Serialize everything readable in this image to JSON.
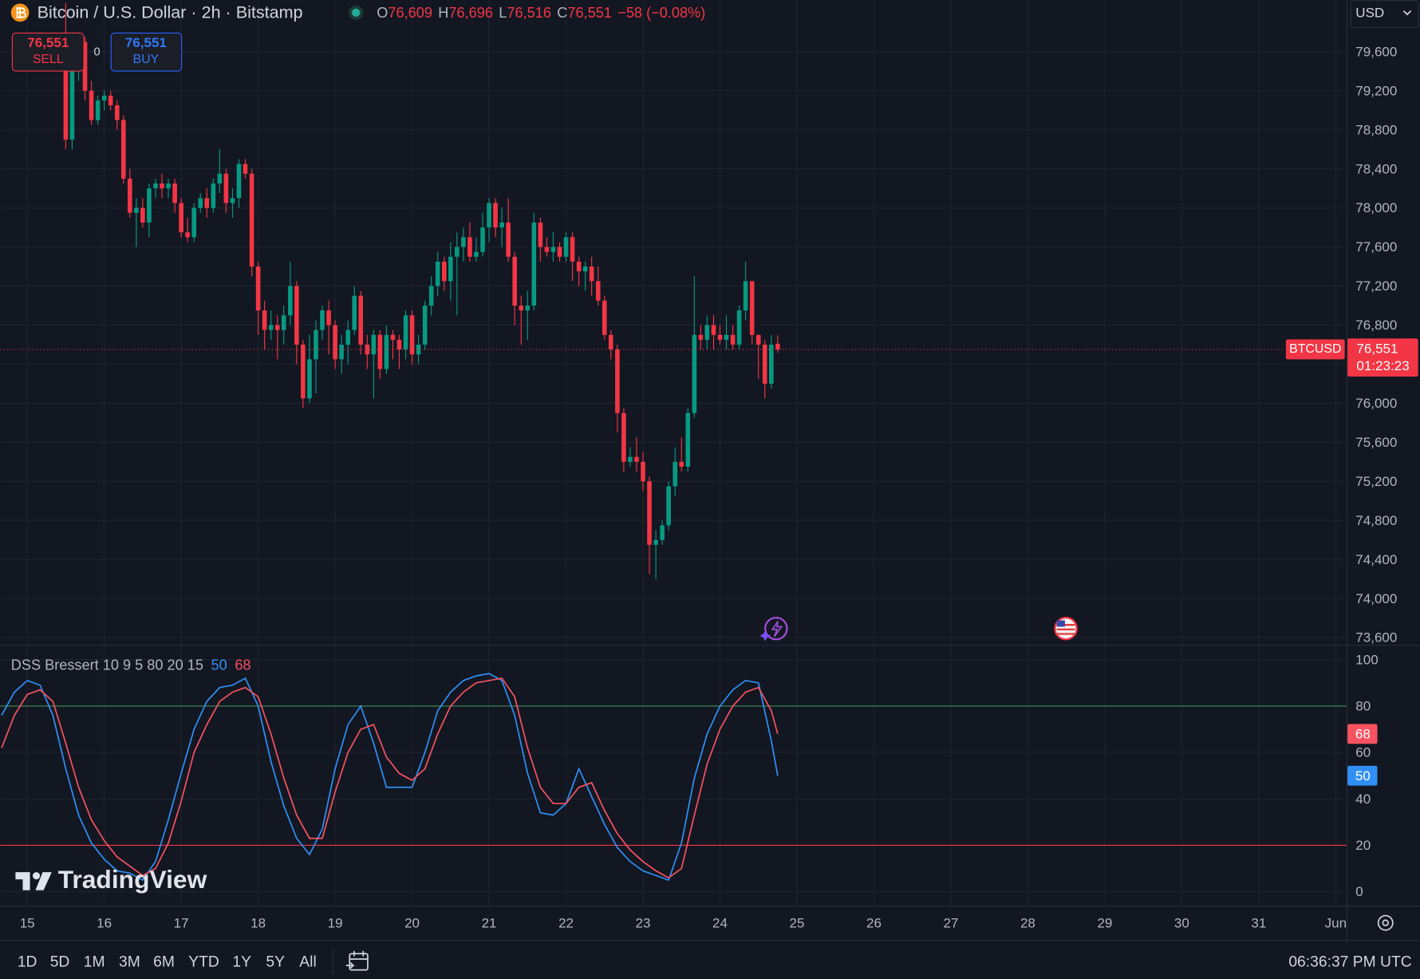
{
  "header": {
    "title": "Bitcoin / U.S. Dollar · 2h · Bitstamp",
    "ohlc": [
      {
        "key": "O",
        "value": "76,609"
      },
      {
        "key": "H",
        "value": "76,696"
      },
      {
        "key": "L",
        "value": "76,516"
      },
      {
        "key": "C",
        "value": "76,551"
      }
    ],
    "change": "−58 (−0.08%)",
    "currency": "USD"
  },
  "trade": {
    "sell": {
      "price": "76,551",
      "label": "SELL"
    },
    "spread": "0",
    "buy": {
      "price": "76,551",
      "label": "BUY"
    }
  },
  "watermark": "TradingView",
  "toolbar": {
    "ranges": [
      "1D",
      "5D",
      "1M",
      "3M",
      "6M",
      "YTD",
      "1Y",
      "5Y",
      "All"
    ],
    "clock": "06:36:37 PM UTC"
  },
  "chart_data": [
    {
      "type": "candlestick",
      "up_color": "#089981",
      "down_color": "#f23645",
      "grid": true,
      "xlim": [
        14.647,
        32.141
      ],
      "xticks": [
        15,
        16,
        17,
        18,
        19,
        20,
        21,
        22,
        23,
        24,
        25,
        26,
        27,
        28,
        29,
        30,
        31,
        {
          "value": 32,
          "label": "Jun"
        }
      ],
      "ylim": [
        73526,
        80129
      ],
      "yticks": [
        {
          "value": 73600,
          "label": "73,600"
        },
        {
          "value": 74000,
          "label": "74,000"
        },
        {
          "value": 74400,
          "label": "74,400"
        },
        {
          "value": 74800,
          "label": "74,800"
        },
        {
          "value": 75200,
          "label": "75,200"
        },
        {
          "value": 75600,
          "label": "75,600"
        },
        {
          "value": 76000,
          "label": "76,000"
        },
        {
          "value": 76400,
          "label": "76,400"
        },
        {
          "value": 76800,
          "label": "76,800"
        },
        {
          "value": 77200,
          "label": "77,200"
        },
        {
          "value": 77600,
          "label": "77,600"
        },
        {
          "value": 78000,
          "label": "78,000"
        },
        {
          "value": 78400,
          "label": "78,400"
        },
        {
          "value": 78800,
          "label": "78,800"
        },
        {
          "value": 79200,
          "label": "79,200"
        },
        {
          "value": 79600,
          "label": "79,600"
        }
      ],
      "last_price": {
        "symbol": "BTCUSD",
        "value": 76551,
        "label": "76,551",
        "countdown": "01:23:23",
        "color": "#f23645"
      },
      "x": [
        15.5,
        15.583,
        15.667,
        15.75,
        15.833,
        15.917,
        16,
        16.083,
        16.167,
        16.25,
        16.333,
        16.417,
        16.5,
        16.583,
        16.667,
        16.75,
        16.833,
        16.917,
        17,
        17.083,
        17.167,
        17.25,
        17.333,
        17.417,
        17.5,
        17.583,
        17.667,
        17.75,
        17.833,
        17.917,
        18,
        18.083,
        18.167,
        18.25,
        18.333,
        18.417,
        18.5,
        18.583,
        18.667,
        18.75,
        18.833,
        18.917,
        19,
        19.083,
        19.167,
        19.25,
        19.333,
        19.417,
        19.5,
        19.583,
        19.667,
        19.75,
        19.833,
        19.917,
        20,
        20.083,
        20.167,
        20.25,
        20.333,
        20.417,
        20.5,
        20.583,
        20.667,
        20.75,
        20.833,
        20.917,
        21,
        21.083,
        21.167,
        21.25,
        21.333,
        21.417,
        21.5,
        21.583,
        21.667,
        21.75,
        21.833,
        21.917,
        22,
        22.083,
        22.167,
        22.25,
        22.333,
        22.417,
        22.5,
        22.583,
        22.667,
        22.75,
        22.833,
        22.917,
        23,
        23.083,
        23.167,
        23.25,
        23.333,
        23.417,
        23.5,
        23.583,
        23.667,
        23.75,
        23.833,
        23.917,
        24,
        24.083,
        24.167,
        24.25,
        24.333,
        24.417,
        24.5,
        24.583,
        24.667,
        24.75
      ],
      "open": [
        79700,
        78700,
        79400,
        79700,
        79200,
        78900,
        79100,
        79150,
        79050,
        78900,
        78300,
        77950,
        78000,
        77850,
        78200,
        78250,
        78200,
        78250,
        78050,
        77750,
        77700,
        78000,
        78100,
        78000,
        78250,
        78350,
        78050,
        78100,
        78450,
        78350,
        77400,
        76950,
        76750,
        76800,
        76750,
        76900,
        77200,
        76600,
        76050,
        76450,
        76750,
        76950,
        76800,
        76450,
        76600,
        76750,
        77100,
        76600,
        76500,
        76700,
        76350,
        76700,
        76650,
        76550,
        76900,
        76500,
        76600,
        77000,
        77200,
        77450,
        77250,
        77500,
        77600,
        77700,
        77500,
        77550,
        77800,
        78050,
        77800,
        77850,
        77500,
        77000,
        76950,
        77000,
        77850,
        77600,
        77550,
        77600,
        77500,
        77700,
        77450,
        77350,
        77400,
        77250,
        77050,
        76700,
        76550,
        75900,
        75400,
        75450,
        75400,
        75200,
        74550,
        74600,
        74750,
        75150,
        75400,
        75350,
        75900,
        76700,
        76650,
        76800,
        76700,
        76650,
        76700,
        76600,
        76950,
        77250,
        76700,
        76600,
        76200,
        76609
      ],
      "high": [
        80100,
        79500,
        79800,
        79750,
        79300,
        79150,
        79200,
        79200,
        79100,
        78950,
        78400,
        78100,
        78100,
        78250,
        78300,
        78350,
        78300,
        78300,
        78100,
        77900,
        78050,
        78150,
        78200,
        78300,
        78600,
        78400,
        78200,
        78500,
        78500,
        78400,
        77450,
        77050,
        76950,
        76900,
        77000,
        77450,
        77250,
        76650,
        76700,
        76850,
        77000,
        77050,
        76850,
        76700,
        76850,
        77200,
        77150,
        76700,
        76750,
        76750,
        76800,
        76750,
        76700,
        76950,
        76950,
        76700,
        77050,
        77300,
        77550,
        77500,
        77650,
        77750,
        77800,
        77850,
        77700,
        77950,
        78100,
        78100,
        78000,
        78100,
        77550,
        77100,
        77150,
        77950,
        77900,
        77700,
        77750,
        77650,
        77750,
        77750,
        77500,
        77450,
        77500,
        77400,
        77100,
        76750,
        76600,
        75950,
        75550,
        75650,
        75500,
        75250,
        74700,
        74800,
        75200,
        75550,
        75650,
        75950,
        77300,
        76800,
        76900,
        76900,
        76800,
        76900,
        76800,
        77000,
        77450,
        77250,
        76700,
        76650,
        76700,
        76696
      ],
      "low": [
        78600,
        78600,
        79300,
        79100,
        78850,
        78850,
        79000,
        79000,
        78800,
        78250,
        77900,
        77600,
        77800,
        77700,
        78100,
        78100,
        78100,
        77950,
        77700,
        77650,
        77650,
        77950,
        77900,
        77950,
        78150,
        77950,
        77900,
        78000,
        78300,
        77300,
        76700,
        76550,
        76650,
        76450,
        76600,
        76800,
        76400,
        75950,
        76000,
        76100,
        76650,
        76500,
        76350,
        76300,
        76400,
        76700,
        76500,
        76350,
        76050,
        76250,
        76300,
        76450,
        76350,
        76450,
        76400,
        76400,
        76550,
        76900,
        77100,
        77150,
        77050,
        76900,
        77450,
        77450,
        77450,
        77500,
        77650,
        77700,
        77600,
        77450,
        76800,
        76600,
        76650,
        76950,
        77450,
        77500,
        77450,
        77450,
        77450,
        77250,
        77200,
        77150,
        77100,
        77000,
        76650,
        76450,
        75700,
        75300,
        75350,
        75300,
        75100,
        74250,
        74200,
        74550,
        74700,
        75050,
        75300,
        75300,
        75850,
        76550,
        76550,
        76550,
        76600,
        76550,
        76550,
        76550,
        76850,
        76600,
        76250,
        76050,
        76150,
        76516
      ],
      "close": [
        78700,
        79400,
        79700,
        79200,
        78900,
        79100,
        79150,
        79050,
        78900,
        78300,
        77950,
        78000,
        77850,
        78200,
        78250,
        78200,
        78250,
        78050,
        77750,
        77700,
        78000,
        78100,
        78000,
        78250,
        78350,
        78050,
        78100,
        78450,
        78350,
        77400,
        76950,
        76750,
        76800,
        76750,
        76900,
        77200,
        76600,
        76050,
        76450,
        76750,
        76950,
        76800,
        76450,
        76600,
        76750,
        77100,
        76600,
        76500,
        76700,
        76350,
        76700,
        76650,
        76550,
        76900,
        76500,
        76600,
        77000,
        77200,
        77450,
        77250,
        77500,
        77600,
        77700,
        77500,
        77550,
        77800,
        78050,
        77800,
        77850,
        77500,
        77000,
        76950,
        77000,
        77850,
        77600,
        77550,
        77600,
        77500,
        77700,
        77450,
        77350,
        77400,
        77250,
        77050,
        76700,
        76550,
        75900,
        75400,
        75450,
        75400,
        75200,
        74550,
        74600,
        74750,
        75150,
        75400,
        75350,
        75900,
        76700,
        76650,
        76800,
        76700,
        76650,
        76700,
        76600,
        76950,
        77250,
        76700,
        76600,
        76200,
        76600,
        76551
      ]
    },
    {
      "type": "line",
      "title": "DSS Bressert 10 9 5 80 20 15",
      "grid": true,
      "xlim": [
        14.647,
        32.141
      ],
      "ylim": [
        -6,
        106
      ],
      "yticks": [
        0,
        20,
        40,
        60,
        80,
        100
      ],
      "levels": [
        {
          "value": 80,
          "color": "#3d8f55"
        },
        {
          "value": 20,
          "color": "#f23645"
        }
      ],
      "x": [
        14.667,
        14.833,
        15,
        15.167,
        15.333,
        15.5,
        15.667,
        15.833,
        16,
        16.167,
        16.333,
        16.5,
        16.667,
        16.833,
        17,
        17.167,
        17.333,
        17.5,
        17.667,
        17.833,
        18,
        18.167,
        18.333,
        18.5,
        18.667,
        18.833,
        19,
        19.167,
        19.333,
        19.5,
        19.667,
        19.833,
        20,
        20.167,
        20.333,
        20.5,
        20.667,
        20.833,
        21,
        21.167,
        21.333,
        21.5,
        21.667,
        21.833,
        22,
        22.167,
        22.333,
        22.5,
        22.667,
        22.833,
        23,
        23.167,
        23.333,
        23.5,
        23.667,
        23.833,
        24,
        24.167,
        24.333,
        24.5,
        24.667,
        24.75
      ],
      "series": [
        {
          "color": "#2f8ff5",
          "values": [
            76,
            86,
            91,
            89,
            76,
            53,
            33,
            21,
            14,
            9,
            8,
            5,
            13,
            31,
            51,
            70,
            82,
            88,
            89,
            92,
            80,
            56,
            37,
            23,
            16,
            27,
            53,
            72,
            80,
            64,
            45,
            45,
            45,
            60,
            78,
            86,
            91,
            93,
            94,
            91,
            76,
            51,
            34,
            33,
            38,
            53,
            41,
            29,
            19,
            13,
            9,
            7,
            5,
            21,
            49,
            68,
            80,
            87,
            91,
            90,
            65,
            50
          ]
        },
        {
          "color": "#f7525f",
          "values": [
            62,
            76,
            85,
            87,
            82,
            64,
            45,
            31,
            22,
            15,
            11,
            7,
            10,
            21,
            39,
            60,
            72,
            82,
            86,
            88,
            84,
            68,
            49,
            33,
            23,
            23,
            43,
            60,
            70,
            72,
            58,
            51,
            48,
            53,
            68,
            80,
            86,
            90,
            91,
            92,
            84,
            62,
            45,
            38,
            38,
            45,
            47,
            35,
            25,
            18,
            13,
            9,
            6,
            10,
            33,
            55,
            70,
            80,
            86,
            88,
            78,
            68
          ]
        }
      ]
    }
  ]
}
